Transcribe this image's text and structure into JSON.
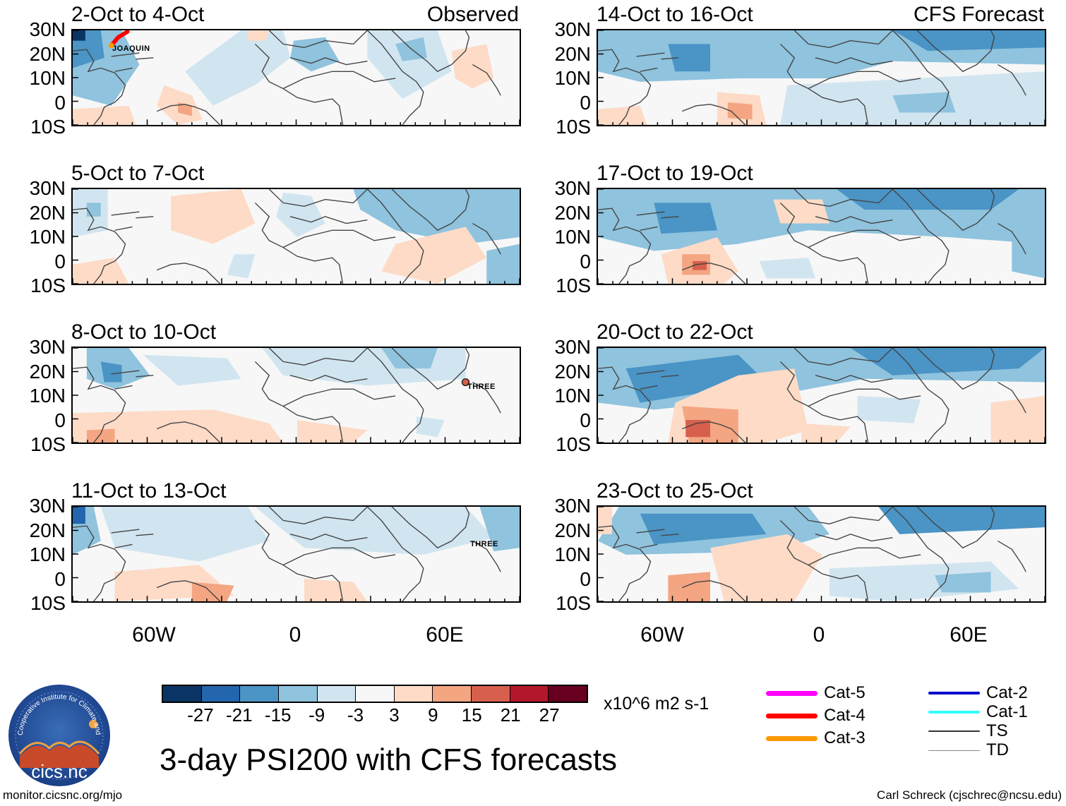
{
  "panels": [
    {
      "title": "2-Oct to 4-Oct",
      "tag": "Observed",
      "storm": "JOAQUIN"
    },
    {
      "title": "5-Oct to 7-Oct",
      "tag": "",
      "storm": ""
    },
    {
      "title": "8-Oct to 10-Oct",
      "tag": "",
      "storm": "THREE"
    },
    {
      "title": "11-Oct to 13-Oct",
      "tag": "",
      "storm": "THREE"
    },
    {
      "title": "14-Oct to 16-Oct",
      "tag": "CFS Forecast",
      "storm": ""
    },
    {
      "title": "17-Oct to 19-Oct",
      "tag": "",
      "storm": ""
    },
    {
      "title": "20-Oct to 22-Oct",
      "tag": "",
      "storm": ""
    },
    {
      "title": "23-Oct to 25-Oct",
      "tag": "",
      "storm": ""
    }
  ],
  "lat_labels": [
    "30N",
    "20N",
    "10N",
    "0",
    "10S"
  ],
  "lon_labels": [
    "60W",
    "0",
    "60E"
  ],
  "colorbar": {
    "colors": [
      "#0a3463",
      "#2466ad",
      "#4a94c6",
      "#8fc3de",
      "#d1e5f0",
      "#f7f7f7",
      "#fddbc7",
      "#f4a582",
      "#d6604d",
      "#b2182b",
      "#67001f"
    ],
    "labels": [
      "-27",
      "-21",
      "-15",
      "-9",
      "-3",
      "3",
      "9",
      "15",
      "21",
      "27"
    ],
    "units": "x10^6 m2 s-1"
  },
  "main_title": "3-day PSI200 with CFS forecasts",
  "logo_text": "cics.nc",
  "logo_ring_text": "Cooperative Institute for Climate and Satellites",
  "legend": [
    {
      "label": "Cat-5",
      "color": "#ff00ff"
    },
    {
      "label": "Cat-4",
      "color": "#ff0000"
    },
    {
      "label": "Cat-3",
      "color": "#ff9900"
    },
    {
      "label": "Cat-2",
      "color": "#0000cc"
    },
    {
      "label": "Cat-1",
      "color": "#33ffff"
    },
    {
      "label": "TS",
      "color": "#333333"
    },
    {
      "label": "TD",
      "color": "#888888"
    }
  ],
  "footer_left": "monitor.cicsnc.org/mjo",
  "footer_right": "Carl Schreck (cjschrec@ncsu.edu)"
}
